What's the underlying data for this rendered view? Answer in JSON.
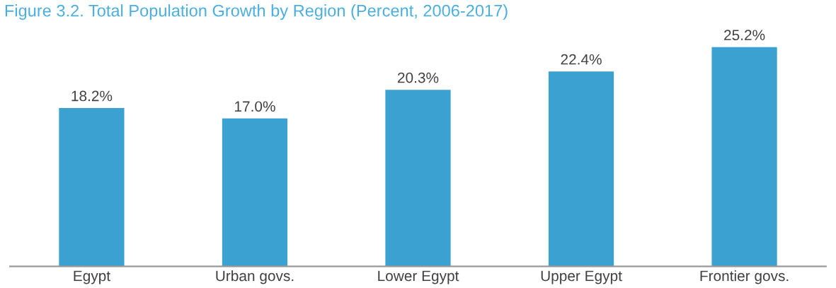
{
  "chart_data": {
    "type": "bar",
    "title": "Figure 3.2. Total Population Growth by Region (Percent, 2006-2017)",
    "categories": [
      "Egypt",
      "Urban govs.",
      "Lower Egypt",
      "Upper Egypt",
      "Frontier govs."
    ],
    "values": [
      18.2,
      17.0,
      20.3,
      22.4,
      25.2
    ],
    "value_labels": [
      "18.2%",
      "17.0%",
      "20.3%",
      "22.4%",
      "25.2%"
    ],
    "color": "#3ba1d0",
    "grid": false,
    "legend": false
  }
}
